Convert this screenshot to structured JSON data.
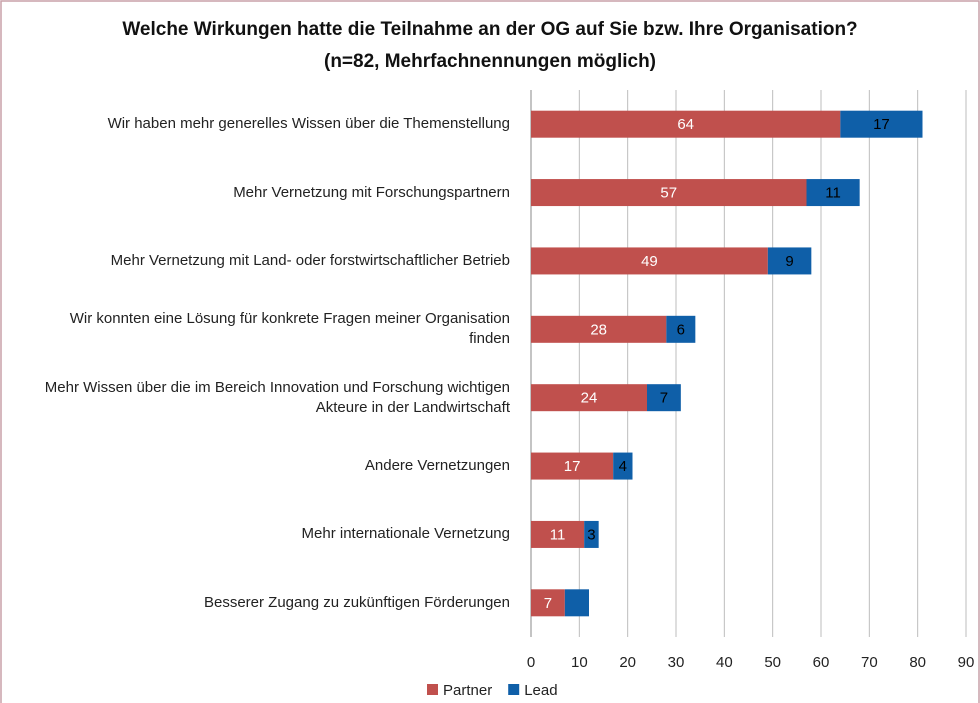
{
  "chart_data": {
    "type": "stacked_barh",
    "title": "Welche Wirkungen hatte die Teilnahme an der OG auf Sie bzw. Ihre Organisation? (n=82, Mehrfachnennungen möglich)",
    "categories": [
      "Wir haben mehr generelles Wissen über die Themenstellung",
      "Mehr Vernetzung mit Forschungspartnern",
      "Mehr Vernetzung mit Land- oder forstwirtschaftlicher Betrieb",
      "Wir konnten eine Lösung für konkrete Fragen meiner Organisation finden",
      "Mehr Wissen über die im Bereich Innovation und Forschung wichtigen Akteure in der Landwirtschaft",
      "Andere Vernetzungen",
      "Mehr internationale Vernetzung",
      "Besserer Zugang zu zukünftigen Förderungen"
    ],
    "series": [
      {
        "name": "Partner",
        "color": "#c0504d",
        "label_color": "#ffffff",
        "values": [
          64,
          57,
          49,
          28,
          24,
          17,
          11,
          7
        ]
      },
      {
        "name": "Lead",
        "color": "#0f5fa8",
        "label_color": "#000000",
        "values": [
          17,
          11,
          9,
          6,
          7,
          4,
          3,
          5
        ],
        "value_labels": [
          "17",
          "11",
          "9",
          "6",
          "7",
          "4",
          "3",
          null
        ]
      }
    ],
    "xlim": [
      0,
      90
    ],
    "xticks": [
      0,
      10,
      20,
      30,
      40,
      50,
      60,
      70,
      80,
      90
    ],
    "grid": true,
    "legend": "bottom"
  }
}
